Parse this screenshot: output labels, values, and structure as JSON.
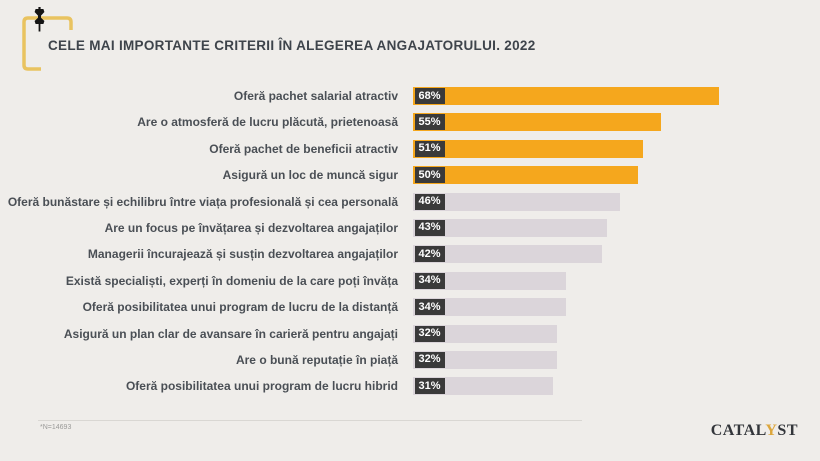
{
  "header": {
    "title": "CELE MAI IMPORTANTE CRITERII ÎN ALEGEREA ANGAJATORULUI. 2022"
  },
  "chart_data": {
    "type": "bar",
    "orientation": "horizontal",
    "title": "CELE MAI IMPORTANTE CRITERII ÎN ALEGEREA ANGAJATORULUI. 2022",
    "categories": [
      "Oferă pachet salarial atractiv",
      "Are o atmosferă de lucru plăcută, prietenoasă",
      "Oferă pachet de beneficii atractiv",
      "Asigură un loc de muncă sigur",
      "Oferă bunăstare și echilibru între viața profesională și cea personală",
      "Are un focus pe învățarea și dezvoltarea angajaților",
      "Managerii încurajează și susțin dezvoltarea angajaților",
      "Există specialiști, experți în domeniu de la care poți învăța",
      "Oferă posibilitatea unui program de lucru de la distanță",
      "Asigură un plan clar de avansare în carieră pentru angajați",
      "Are o bună reputație în piață",
      "Oferă posibilitatea unui program de lucru hibrid"
    ],
    "values": [
      68,
      55,
      51,
      50,
      46,
      43,
      42,
      34,
      34,
      32,
      32,
      31
    ],
    "value_labels": [
      "68%",
      "55%",
      "51%",
      "50%",
      "46%",
      "43%",
      "42%",
      "34%",
      "34%",
      "32%",
      "32%",
      "31%"
    ],
    "unit": "%",
    "xlim": [
      0,
      70
    ],
    "grid": false,
    "legend": "none",
    "highlight_count": 4,
    "colors": {
      "bar_highlight": "#f5a71d",
      "bar_default": "#dbd5da",
      "value_box": "#3a3a3a",
      "value_text": "#ffffff",
      "accent_bracket": "#e9c360",
      "background": "#efedea"
    }
  },
  "footer": {
    "note": "*N=14693",
    "logo_left": "CATAL",
    "logo_accent": "Y",
    "logo_right": "ST"
  }
}
